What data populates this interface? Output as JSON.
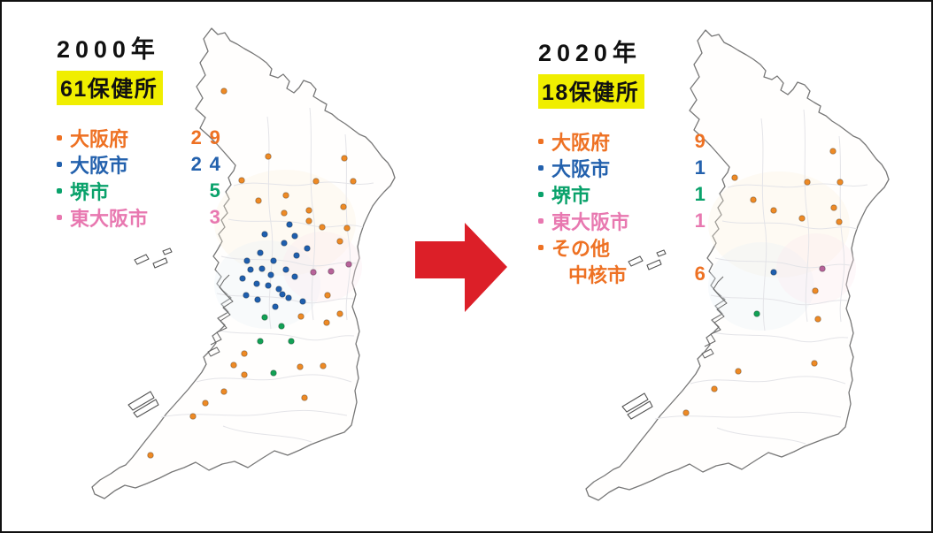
{
  "figure": {
    "description_left_period": "2000",
    "description_right_period": "2020"
  },
  "panels": {
    "left": {
      "title": "2000年",
      "badge": "61保健所",
      "legend": [
        {
          "label": "大阪府",
          "count": "29",
          "color": "orange"
        },
        {
          "label": "大阪市",
          "count": "24",
          "color": "blue"
        },
        {
          "label": "堺市",
          "count": "5",
          "color": "green"
        },
        {
          "label": "東大阪市",
          "count": "3",
          "color": "pink"
        }
      ]
    },
    "right": {
      "title": "2020年",
      "badge": "18保健所",
      "legend": [
        {
          "label": "大阪府",
          "count": "9",
          "color": "orange"
        },
        {
          "label": "大阪市",
          "count": "1",
          "color": "blue"
        },
        {
          "label": "堺市",
          "count": "1",
          "color": "green"
        },
        {
          "label": "東大阪市",
          "count": "1",
          "color": "pink"
        },
        {
          "label": "その他",
          "count": "",
          "color": "orange"
        },
        {
          "label": "中核市",
          "count": "6",
          "color": "orange",
          "indent": true
        }
      ]
    }
  },
  "colors": {
    "orange_text": "#ee7123",
    "blue_text": "#2361ad",
    "green_text": "#0aa26b",
    "pink_text": "#e878b0",
    "dot_orange": "#ee8a25",
    "dot_blue": "#1f5fae",
    "dot_green": "#12a155",
    "dot_pink": "#b7639a",
    "highlight": "#f0ee00",
    "arrow": "#dc1f28",
    "outline": "#777777"
  },
  "maps": {
    "left": {
      "dots": {
        "orange": [
          [
            251,
            101
          ],
          [
            301,
            175
          ],
          [
            387,
            177
          ],
          [
            271,
            202
          ],
          [
            355,
            203
          ],
          [
            397,
            203
          ],
          [
            321,
            219
          ],
          [
            290,
            225
          ],
          [
            319,
            239
          ],
          [
            347,
            236
          ],
          [
            386,
            232
          ],
          [
            347,
            248
          ],
          [
            362,
            255
          ],
          [
            390,
            256
          ],
          [
            382,
            271
          ],
          [
            368,
            332
          ],
          [
            382,
            353
          ],
          [
            338,
            356
          ],
          [
            367,
            363
          ],
          [
            274,
            398
          ],
          [
            262,
            411
          ],
          [
            274,
            422
          ],
          [
            337,
            413
          ],
          [
            363,
            412
          ],
          [
            251,
            441
          ],
          [
            230,
            454
          ],
          [
            342,
            448
          ],
          [
            216,
            469
          ],
          [
            168,
            513
          ]
        ],
        "blue": [
          [
            325,
            252
          ],
          [
            297,
            263
          ],
          [
            331,
            265
          ],
          [
            319,
            273
          ],
          [
            345,
            279
          ],
          [
            292,
            284
          ],
          [
            333,
            287
          ],
          [
            277,
            293
          ],
          [
            307,
            293
          ],
          [
            294,
            302
          ],
          [
            281,
            303
          ],
          [
            321,
            303
          ],
          [
            272,
            313
          ],
          [
            304,
            309
          ],
          [
            331,
            311
          ],
          [
            288,
            319
          ],
          [
            301,
            321
          ],
          [
            313,
            325
          ],
          [
            276,
            332
          ],
          [
            289,
            337
          ],
          [
            324,
            335
          ],
          [
            340,
            339
          ],
          [
            309,
            345
          ],
          [
            317,
            331
          ]
        ],
        "green": [
          [
            297,
            357
          ],
          [
            316,
            367
          ],
          [
            292,
            384
          ],
          [
            327,
            384
          ],
          [
            307,
            420
          ]
        ],
        "pink": [
          [
            392,
            297
          ],
          [
            352,
            306
          ],
          [
            372,
            305
          ]
        ]
      }
    },
    "right": {
      "dots": {
        "orange": [
          [
            939,
            169
          ],
          [
            828,
            199
          ],
          [
            910,
            204
          ],
          [
            947,
            204
          ],
          [
            849,
            224
          ],
          [
            872,
            236
          ],
          [
            940,
            233
          ],
          [
            904,
            245
          ],
          [
            946,
            249
          ],
          [
            919,
            327
          ],
          [
            922,
            359
          ],
          [
            918,
            409
          ],
          [
            832,
            418
          ],
          [
            805,
            438
          ],
          [
            773,
            465
          ]
        ],
        "blue": [
          [
            872,
            306
          ]
        ],
        "green": [
          [
            853,
            353
          ]
        ],
        "pink": [
          [
            927,
            302
          ]
        ]
      }
    }
  },
  "arrow": {
    "meaning": "change from 2000 to 2020"
  }
}
